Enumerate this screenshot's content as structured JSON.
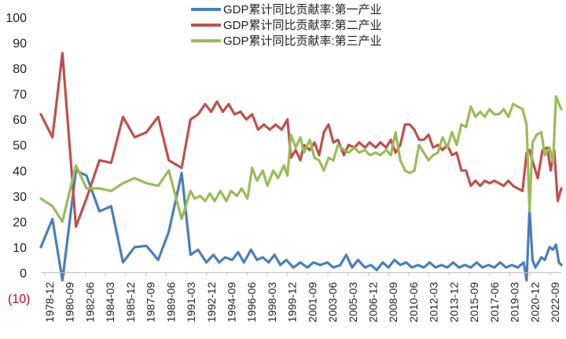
{
  "chart_data": {
    "type": "line",
    "ylim": [
      -10,
      100
    ],
    "yticks": [
      -10,
      0,
      10,
      20,
      30,
      40,
      50,
      60,
      70,
      80,
      90,
      100
    ],
    "ytick_labels": [
      "(10)",
      "0",
      "10",
      "20",
      "30",
      "40",
      "50",
      "60",
      "70",
      "80",
      "90",
      "100"
    ],
    "negative_tick_color": "#d0021b",
    "grid": false,
    "legend_position": "top-center",
    "xtick_labels": [
      "1978-12",
      "1980-09",
      "1982-06",
      "1984-03",
      "1985-12",
      "1987-09",
      "1989-06",
      "1991-03",
      "1992-12",
      "1994-09",
      "1996-06",
      "1998-03",
      "1999-12",
      "2001-09",
      "2003-06",
      "2005-03",
      "2006-12",
      "2008-09",
      "2010-06",
      "2012-03",
      "2013-12",
      "2015-09",
      "2017-06",
      "2019-03",
      "2020-12",
      "2022-09"
    ],
    "series": [
      {
        "name": "GDP累计同比贡献率:第一产业",
        "color": "#4a7ebb",
        "points": [
          [
            1978.92,
            10
          ],
          [
            1979.9,
            21
          ],
          [
            1980.75,
            -3
          ],
          [
            1981.9,
            40
          ],
          [
            1982.8,
            38
          ],
          [
            1983.9,
            24
          ],
          [
            1984.9,
            26
          ],
          [
            1985.9,
            4
          ],
          [
            1986.9,
            10
          ],
          [
            1987.9,
            10.5
          ],
          [
            1988.9,
            5
          ],
          [
            1989.8,
            16
          ],
          [
            1990.9,
            39
          ],
          [
            1991.65,
            7
          ],
          [
            1992.3,
            9
          ],
          [
            1993.0,
            4
          ],
          [
            1993.6,
            7
          ],
          [
            1994.1,
            4
          ],
          [
            1994.6,
            6
          ],
          [
            1995.2,
            5
          ],
          [
            1995.7,
            8
          ],
          [
            1996.2,
            4
          ],
          [
            1996.8,
            9
          ],
          [
            1997.3,
            5
          ],
          [
            1997.8,
            6
          ],
          [
            1998.3,
            4
          ],
          [
            1998.8,
            7
          ],
          [
            1999.3,
            3
          ],
          [
            1999.8,
            5
          ],
          [
            2000.4,
            2
          ],
          [
            2001.0,
            4
          ],
          [
            2001.6,
            2
          ],
          [
            2002.1,
            4
          ],
          [
            2002.7,
            3
          ],
          [
            2003.3,
            4
          ],
          [
            2003.8,
            2
          ],
          [
            2004.4,
            3
          ],
          [
            2004.9,
            7
          ],
          [
            2005.4,
            2
          ],
          [
            2005.9,
            5
          ],
          [
            2006.5,
            2
          ],
          [
            2007.0,
            3
          ],
          [
            2007.5,
            1
          ],
          [
            2008.0,
            4
          ],
          [
            2008.5,
            2
          ],
          [
            2009.0,
            5
          ],
          [
            2009.5,
            3
          ],
          [
            2010.0,
            4
          ],
          [
            2010.5,
            2
          ],
          [
            2011.0,
            3
          ],
          [
            2011.5,
            2
          ],
          [
            2012.0,
            4
          ],
          [
            2012.5,
            2
          ],
          [
            2013.0,
            3
          ],
          [
            2013.5,
            2
          ],
          [
            2014.0,
            4
          ],
          [
            2014.5,
            2
          ],
          [
            2015.0,
            3
          ],
          [
            2015.5,
            2
          ],
          [
            2016.0,
            4
          ],
          [
            2016.5,
            2
          ],
          [
            2017.0,
            3
          ],
          [
            2017.5,
            2
          ],
          [
            2018.0,
            4
          ],
          [
            2018.5,
            2
          ],
          [
            2019.0,
            3
          ],
          [
            2019.5,
            2
          ],
          [
            2020.0,
            4
          ],
          [
            2020.25,
            -3
          ],
          [
            2020.5,
            25
          ],
          [
            2020.75,
            5
          ],
          [
            2021.0,
            2
          ],
          [
            2021.5,
            6
          ],
          [
            2021.8,
            5
          ],
          [
            2022.2,
            10
          ],
          [
            2022.5,
            9
          ],
          [
            2022.75,
            11
          ],
          [
            2023.0,
            4
          ],
          [
            2023.2,
            3
          ]
        ]
      },
      {
        "name": "GDP累计同比贡献率:第二产业",
        "color": "#c0504d",
        "points": [
          [
            1978.92,
            62
          ],
          [
            1979.9,
            53
          ],
          [
            1980.75,
            86
          ],
          [
            1981.9,
            18
          ],
          [
            1982.8,
            29
          ],
          [
            1983.9,
            44
          ],
          [
            1984.9,
            43
          ],
          [
            1985.9,
            61
          ],
          [
            1986.9,
            53
          ],
          [
            1987.9,
            55
          ],
          [
            1988.9,
            61
          ],
          [
            1989.8,
            44
          ],
          [
            1990.9,
            41
          ],
          [
            1991.65,
            60
          ],
          [
            1992.3,
            62
          ],
          [
            1992.9,
            66
          ],
          [
            1993.4,
            63
          ],
          [
            1993.9,
            67
          ],
          [
            1994.4,
            63
          ],
          [
            1994.9,
            66
          ],
          [
            1995.4,
            62
          ],
          [
            1995.9,
            63
          ],
          [
            1996.4,
            60
          ],
          [
            1996.9,
            62
          ],
          [
            1997.4,
            56
          ],
          [
            1997.9,
            58
          ],
          [
            1998.4,
            56
          ],
          [
            1998.9,
            58
          ],
          [
            1999.4,
            56
          ],
          [
            1999.9,
            60
          ],
          [
            2000.2,
            45
          ],
          [
            2000.6,
            48
          ],
          [
            2001.0,
            44
          ],
          [
            2001.3,
            50
          ],
          [
            2001.8,
            48
          ],
          [
            2002.2,
            51
          ],
          [
            2002.6,
            46
          ],
          [
            2003.0,
            55
          ],
          [
            2003.4,
            58
          ],
          [
            2003.8,
            51
          ],
          [
            2004.2,
            52
          ],
          [
            2004.7,
            46
          ],
          [
            2005.1,
            50
          ],
          [
            2005.6,
            49
          ],
          [
            2006.0,
            51
          ],
          [
            2006.5,
            49
          ],
          [
            2006.9,
            51
          ],
          [
            2007.4,
            49
          ],
          [
            2007.8,
            51
          ],
          [
            2008.3,
            49
          ],
          [
            2008.7,
            52
          ],
          [
            2009.1,
            47
          ],
          [
            2009.5,
            50
          ],
          [
            2009.9,
            58
          ],
          [
            2010.3,
            58
          ],
          [
            2010.7,
            56
          ],
          [
            2011.1,
            52
          ],
          [
            2011.5,
            52
          ],
          [
            2011.9,
            54
          ],
          [
            2012.3,
            49
          ],
          [
            2012.7,
            50
          ],
          [
            2013.1,
            48
          ],
          [
            2013.5,
            50
          ],
          [
            2013.9,
            46
          ],
          [
            2014.3,
            47
          ],
          [
            2014.7,
            40
          ],
          [
            2015.1,
            40
          ],
          [
            2015.5,
            34
          ],
          [
            2015.9,
            36
          ],
          [
            2016.3,
            34
          ],
          [
            2016.7,
            36
          ],
          [
            2017.1,
            35
          ],
          [
            2017.5,
            36
          ],
          [
            2017.9,
            35
          ],
          [
            2018.3,
            34
          ],
          [
            2018.7,
            36
          ],
          [
            2019.1,
            34
          ],
          [
            2019.5,
            33
          ],
          [
            2019.9,
            32
          ],
          [
            2020.25,
            47
          ],
          [
            2020.5,
            48
          ],
          [
            2020.8,
            43
          ],
          [
            2021.2,
            37
          ],
          [
            2021.6,
            48
          ],
          [
            2022.0,
            49
          ],
          [
            2022.3,
            40
          ],
          [
            2022.6,
            48
          ],
          [
            2022.9,
            28
          ],
          [
            2023.2,
            33
          ]
        ]
      },
      {
        "name": "GDP累计同比贡献率:第三产业",
        "color": "#9bbb59",
        "points": [
          [
            1978.92,
            29
          ],
          [
            1979.9,
            26
          ],
          [
            1980.75,
            20
          ],
          [
            1981.9,
            42
          ],
          [
            1982.8,
            33
          ],
          [
            1983.9,
            33
          ],
          [
            1984.9,
            32
          ],
          [
            1985.9,
            35
          ],
          [
            1986.9,
            37
          ],
          [
            1987.9,
            35
          ],
          [
            1988.9,
            34
          ],
          [
            1989.8,
            40
          ],
          [
            1990.9,
            21
          ],
          [
            1991.65,
            32
          ],
          [
            1992.0,
            29
          ],
          [
            1992.5,
            30
          ],
          [
            1992.9,
            28
          ],
          [
            1993.3,
            31
          ],
          [
            1993.7,
            28
          ],
          [
            1994.2,
            32
          ],
          [
            1994.7,
            28
          ],
          [
            1995.1,
            32
          ],
          [
            1995.6,
            30
          ],
          [
            1996.0,
            33
          ],
          [
            1996.5,
            29
          ],
          [
            1996.9,
            41
          ],
          [
            1997.3,
            36
          ],
          [
            1997.8,
            40
          ],
          [
            1998.2,
            34
          ],
          [
            1998.7,
            40
          ],
          [
            1999.1,
            37
          ],
          [
            1999.6,
            42
          ],
          [
            1999.9,
            38
          ],
          [
            2000.2,
            54
          ],
          [
            2000.6,
            49
          ],
          [
            2001.0,
            53
          ],
          [
            2001.3,
            47
          ],
          [
            2001.8,
            52
          ],
          [
            2002.2,
            45
          ],
          [
            2002.6,
            44
          ],
          [
            2003.0,
            40
          ],
          [
            2003.4,
            45
          ],
          [
            2003.8,
            44
          ],
          [
            2004.2,
            50
          ],
          [
            2004.7,
            48
          ],
          [
            2005.1,
            47
          ],
          [
            2005.6,
            49
          ],
          [
            2006.0,
            47
          ],
          [
            2006.5,
            48
          ],
          [
            2006.9,
            46
          ],
          [
            2007.4,
            47
          ],
          [
            2007.8,
            46
          ],
          [
            2008.3,
            48
          ],
          [
            2008.7,
            46
          ],
          [
            2009.1,
            55
          ],
          [
            2009.5,
            44
          ],
          [
            2009.9,
            40
          ],
          [
            2010.3,
            39
          ],
          [
            2010.7,
            40
          ],
          [
            2011.1,
            50
          ],
          [
            2011.5,
            47
          ],
          [
            2011.9,
            44
          ],
          [
            2012.3,
            46
          ],
          [
            2012.7,
            47
          ],
          [
            2013.1,
            53
          ],
          [
            2013.5,
            49
          ],
          [
            2013.9,
            55
          ],
          [
            2014.3,
            50
          ],
          [
            2014.7,
            58
          ],
          [
            2015.1,
            57
          ],
          [
            2015.5,
            65
          ],
          [
            2015.9,
            61
          ],
          [
            2016.3,
            63
          ],
          [
            2016.7,
            61
          ],
          [
            2017.1,
            64
          ],
          [
            2017.5,
            62
          ],
          [
            2017.9,
            62
          ],
          [
            2018.3,
            64
          ],
          [
            2018.7,
            61
          ],
          [
            2019.1,
            66
          ],
          [
            2019.5,
            65
          ],
          [
            2019.9,
            64
          ],
          [
            2020.25,
            58
          ],
          [
            2020.5,
            24
          ],
          [
            2020.75,
            51
          ],
          [
            2021.1,
            54
          ],
          [
            2021.5,
            55
          ],
          [
            2021.8,
            46
          ],
          [
            2022.2,
            49
          ],
          [
            2022.5,
            43
          ],
          [
            2022.75,
            69
          ],
          [
            2023.2,
            64
          ]
        ]
      }
    ]
  }
}
